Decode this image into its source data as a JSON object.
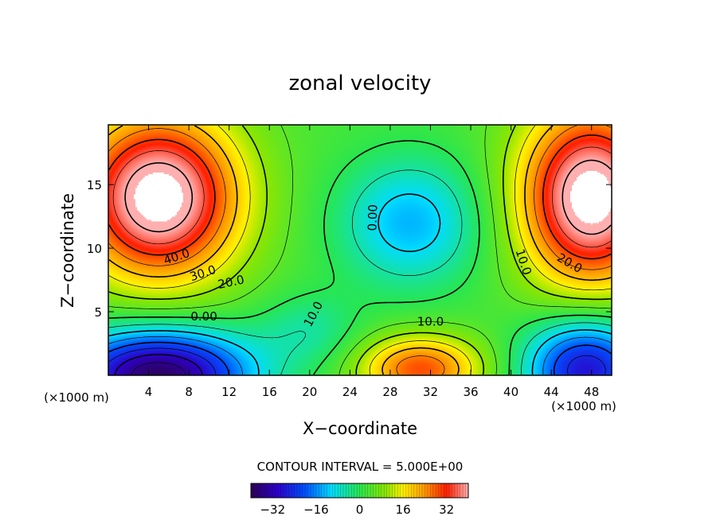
{
  "chart_data": {
    "type": "heatmap",
    "title": "zonal velocity",
    "xlabel": "X−coordinate",
    "ylabel": "Z−coordinate",
    "x_unit_left": "(×1000 m)",
    "x_unit_right": "(×1000 m)",
    "xlim": [
      0,
      50
    ],
    "ylim": [
      0,
      19.7
    ],
    "x_ticks": [
      4,
      8,
      12,
      16,
      20,
      24,
      28,
      32,
      36,
      40,
      44,
      48
    ],
    "y_ticks": [
      5,
      10,
      15
    ],
    "contour_interval_label": "CONTOUR INTERVAL = 5.000E+00",
    "contour_interval": 5.0,
    "value_range": [
      -40,
      40
    ],
    "colorbar_ticks": [
      "−32",
      "−16",
      "0",
      "16",
      "32"
    ],
    "colorbar_tick_values": [
      -32,
      -16,
      0,
      16,
      32
    ],
    "contour_labels": [
      {
        "text": "40.0",
        "x": 6.8,
        "z": 9.3,
        "angle": -18
      },
      {
        "text": "30.0",
        "x": 9.4,
        "z": 8.0,
        "angle": -18
      },
      {
        "text": "20.0",
        "x": 12.2,
        "z": 7.3,
        "angle": -12
      },
      {
        "text": "0.00",
        "x": 9.5,
        "z": 4.6,
        "angle": 0
      },
      {
        "text": "10.0",
        "x": 20.4,
        "z": 4.8,
        "angle": -62
      },
      {
        "text": "0.00",
        "x": 26.3,
        "z": 12.4,
        "angle": -88
      },
      {
        "text": "10.0",
        "x": 32.0,
        "z": 4.2,
        "angle": 0
      },
      {
        "text": "10.0",
        "x": 41.2,
        "z": 8.9,
        "angle": 72
      },
      {
        "text": "20.0",
        "x": 45.8,
        "z": 8.8,
        "angle": 30
      }
    ],
    "features": [
      {
        "name": "upper-left jet core",
        "sign": "positive",
        "peak_value": 45
      },
      {
        "name": "upper-right jet core",
        "sign": "positive",
        "peak_value": 45
      },
      {
        "name": "central weak region",
        "sign": "near-zero",
        "value": 0
      },
      {
        "name": "bottom-left reversed flow",
        "sign": "negative",
        "peak_value": -38
      },
      {
        "name": "bottom-right reversed flow",
        "sign": "negative",
        "peak_value": -28
      },
      {
        "name": "bottom-center positive lobe",
        "sign": "positive",
        "peak_value": 28
      }
    ]
  }
}
